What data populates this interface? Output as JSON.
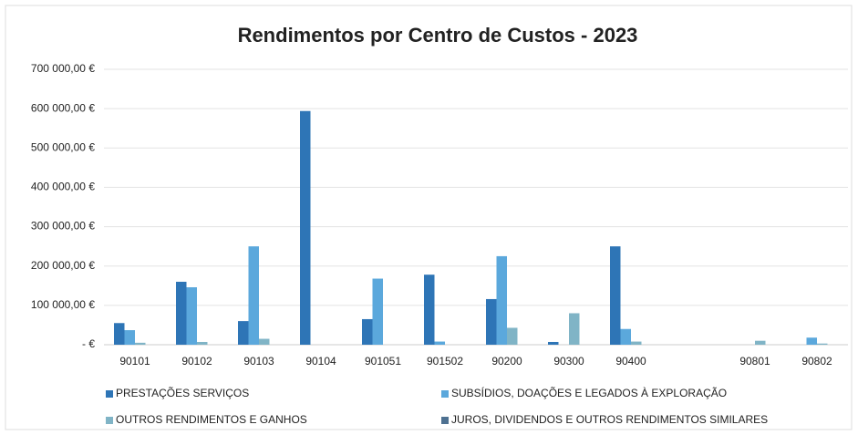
{
  "chart_data": {
    "type": "bar",
    "title": "Rendimentos por Centro de Custos - 2023",
    "categories": [
      "90101",
      "90102",
      "90103",
      "90104",
      "901051",
      "901502",
      "90200",
      "90300",
      "90400",
      null,
      "90801",
      "90802"
    ],
    "series": [
      {
        "name": "PRESTAÇÕES SERVIÇOS",
        "color": "#2e75b6",
        "values": [
          55000,
          160000,
          60000,
          594000,
          65000,
          178000,
          116000,
          7000,
          250000,
          0,
          0,
          0
        ]
      },
      {
        "name": "SUBSÍDIOS, DOAÇÕES E LEGADOS À EXPLORAÇÃO",
        "color": "#5ba8dc",
        "values": [
          37000,
          146000,
          250000,
          0,
          168000,
          8000,
          225000,
          0,
          40000,
          0,
          0,
          18000
        ]
      },
      {
        "name": "OUTROS RENDIMENTOS E GANHOS",
        "color": "#80b4c6",
        "values": [
          5000,
          7000,
          15000,
          0,
          0,
          0,
          43000,
          80000,
          8000,
          0,
          10000,
          3000
        ]
      },
      {
        "name": "JUROS, DIVIDENDOS E OUTROS RENDIMENTOS SIMILARES",
        "color": "#4e7191",
        "values": [
          0,
          0,
          0,
          0,
          0,
          0,
          0,
          0,
          0,
          0,
          0,
          0
        ]
      }
    ],
    "ylim": [
      0,
      700000
    ],
    "yticks": [
      {
        "value": 0,
        "label": "-   €"
      },
      {
        "value": 100000,
        "label": "100 000,00 €"
      },
      {
        "value": 200000,
        "label": "200 000,00 €"
      },
      {
        "value": 300000,
        "label": "300 000,00 €"
      },
      {
        "value": 400000,
        "label": "400 000,00 €"
      },
      {
        "value": 500000,
        "label": "500 000,00 €"
      },
      {
        "value": 600000,
        "label": "600 000,00 €"
      },
      {
        "value": 700000,
        "label": "700 000,00 €"
      }
    ],
    "grid": true
  }
}
